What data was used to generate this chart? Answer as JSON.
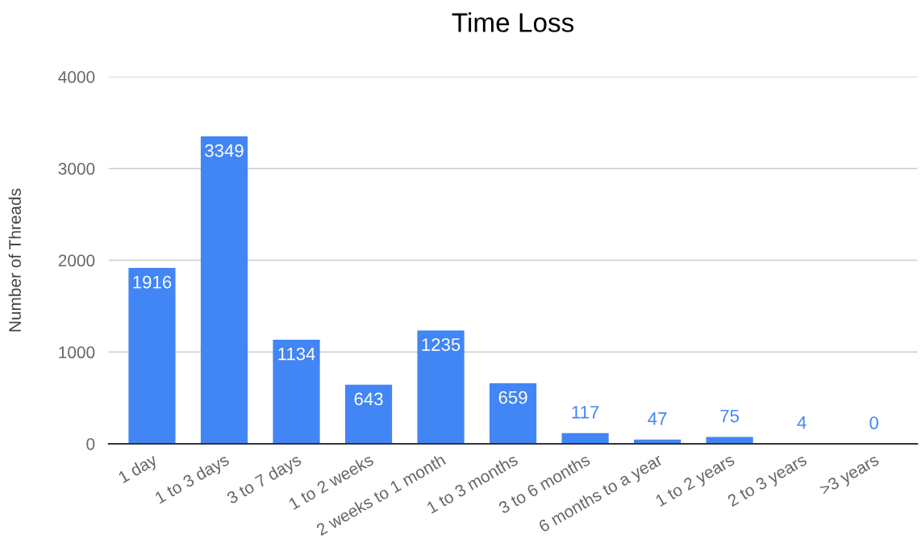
{
  "chart_data": {
    "type": "bar",
    "title": "Time Loss",
    "ylabel": "Number of Threads",
    "categories": [
      "1 day",
      "1 to 3 days",
      "3 to 7 days",
      "1 to 2 weeks",
      "2 weeks to 1 month",
      "1 to 3 months",
      "3 to 6 months",
      "6 months to a year",
      "1 to 2 years",
      "2 to 3 years",
      ">3 years"
    ],
    "values": [
      1916,
      3349,
      1134,
      643,
      1235,
      659,
      117,
      47,
      75,
      4,
      0
    ],
    "color": "#4285f4",
    "ylim": [
      0,
      4000
    ],
    "yticks": [
      0,
      1000,
      2000,
      3000,
      4000
    ],
    "grid": "y",
    "data_labels": true
  }
}
